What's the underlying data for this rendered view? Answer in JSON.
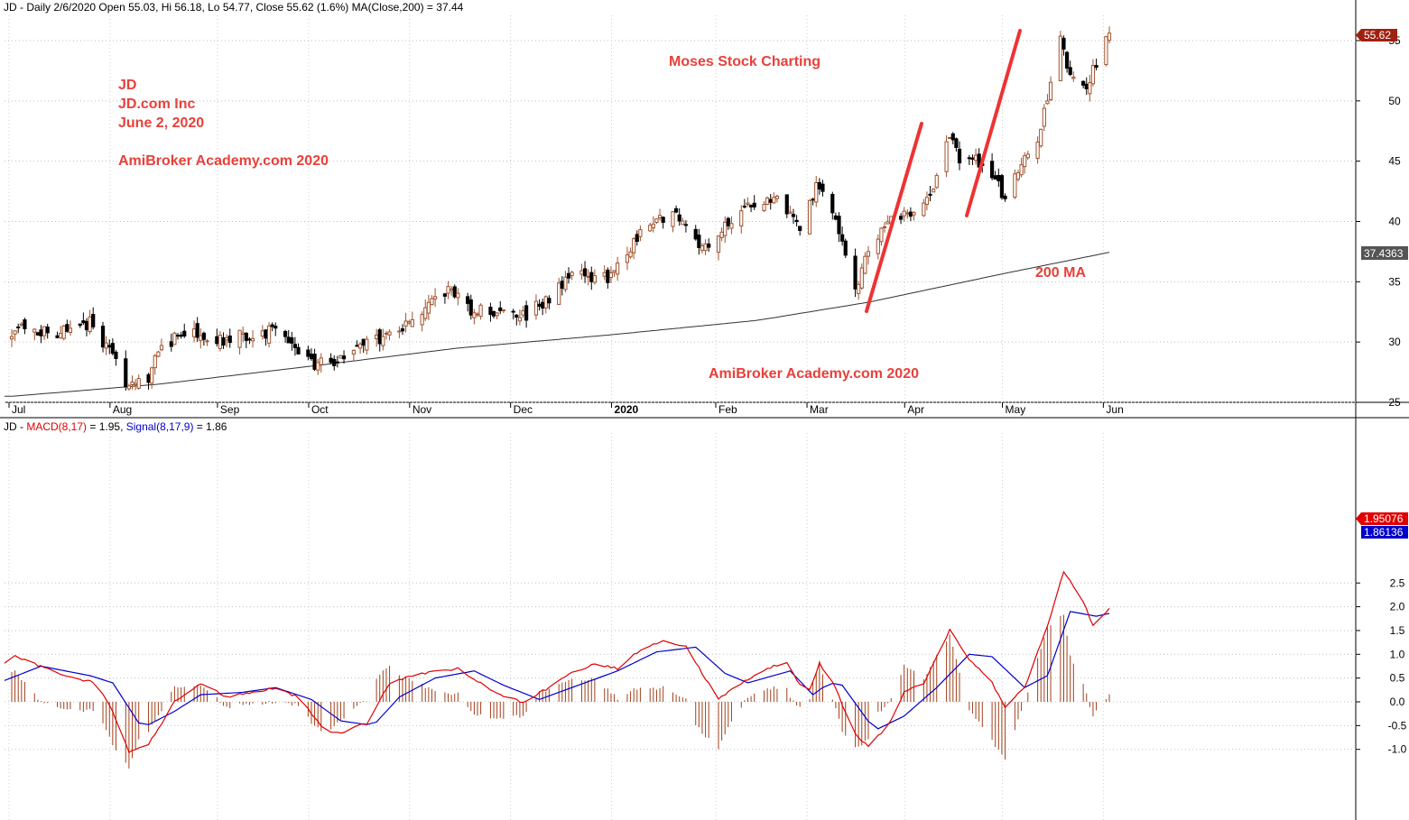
{
  "price_panel": {
    "header": "JD - Daily 2/6/2020 Open 55.03, Hi 56.18, Lo 54.77, Close 55.62 (1.6%) MA(Close,200) = 37.44",
    "last_price_label": "55.62",
    "ma_label": "37.4363",
    "annotations": {
      "ticker": "JD",
      "company": "JD.com Inc",
      "date": "June 2, 2020",
      "watermark_top": "AmiBroker Academy.com 2020",
      "title": "Moses Stock Charting",
      "ma_note": "200 MA",
      "watermark_bottom": "AmiBroker Academy.com  2020"
    }
  },
  "macd_panel": {
    "header_prefix": "JD - ",
    "header_macd": "MACD(8,17)",
    "header_macd_value": " = 1.95, ",
    "header_signal": "Signal(8,17,9)",
    "header_signal_value": " = 1.86",
    "macd_label": "1.95076",
    "signal_label": "1.86136"
  },
  "colors": {
    "up_candle": "#a0522d",
    "down_candle": "#000000",
    "macd_line": "#e00000",
    "signal_line": "#0000cc",
    "histogram": "#a0401a",
    "annotation": "#e8403a",
    "trend_line": "#ee3333",
    "ma_line": "#333333"
  },
  "chart_data": [
    {
      "type": "candlestick",
      "name": "JD price",
      "y_ticks": [
        25,
        30,
        35,
        40,
        45,
        50,
        55
      ],
      "ylim": [
        24.5,
        58
      ],
      "x_ticks": [
        "Jul",
        "Aug",
        "Sep",
        "Oct",
        "Nov",
        "Dec",
        "2020",
        "Feb",
        "Mar",
        "Apr",
        "May",
        "Jun"
      ],
      "close_anchors": [
        [
          "2019-07-01",
          31.0
        ],
        [
          "2019-07-15",
          30.8
        ],
        [
          "2019-07-25",
          31.6
        ],
        [
          "2019-08-01",
          29.0
        ],
        [
          "2019-08-05",
          26.2
        ],
        [
          "2019-08-12",
          27.0
        ],
        [
          "2019-08-15",
          29.0
        ],
        [
          "2019-08-22",
          31.0
        ],
        [
          "2019-09-01",
          30.0
        ],
        [
          "2019-09-10",
          30.5
        ],
        [
          "2019-09-20",
          30.9
        ],
        [
          "2019-09-27",
          29.0
        ],
        [
          "2019-10-01",
          28.2
        ],
        [
          "2019-10-08",
          28.4
        ],
        [
          "2019-10-15",
          29.8
        ],
        [
          "2019-10-25",
          30.6
        ],
        [
          "2019-11-01",
          31.6
        ],
        [
          "2019-11-08",
          33.3
        ],
        [
          "2019-11-13",
          34.5
        ],
        [
          "2019-11-20",
          32.5
        ],
        [
          "2019-11-29",
          32.6
        ],
        [
          "2019-12-05",
          32.2
        ],
        [
          "2019-12-13",
          33.5
        ],
        [
          "2019-12-20",
          35.8
        ],
        [
          "2019-12-31",
          35.2
        ],
        [
          "2020-01-06",
          37.0
        ],
        [
          "2020-01-10",
          39.5
        ],
        [
          "2020-01-17",
          40.1
        ],
        [
          "2020-01-23",
          40.5
        ],
        [
          "2020-01-28",
          37.4
        ],
        [
          "2020-02-03",
          39.2
        ],
        [
          "2020-02-10",
          40.9
        ],
        [
          "2020-02-17",
          41.4
        ],
        [
          "2020-02-21",
          42.1
        ],
        [
          "2020-02-25",
          40.5
        ],
        [
          "2020-02-28",
          39.0
        ],
        [
          "2020-03-04",
          43.0
        ],
        [
          "2020-03-09",
          41.0
        ],
        [
          "2020-03-12",
          38.0
        ],
        [
          "2020-03-16",
          34.5
        ],
        [
          "2020-03-19",
          36.8
        ],
        [
          "2020-03-23",
          38.7
        ],
        [
          "2020-03-26",
          40.4
        ],
        [
          "2020-03-31",
          40.6
        ],
        [
          "2020-04-06",
          41.2
        ],
        [
          "2020-04-09",
          43.0
        ],
        [
          "2020-04-14",
          47.0
        ],
        [
          "2020-04-17",
          45.0
        ],
        [
          "2020-04-22",
          45.3
        ],
        [
          "2020-04-27",
          44.0
        ],
        [
          "2020-05-01",
          42.0
        ],
        [
          "2020-05-06",
          44.5
        ],
        [
          "2020-05-11",
          47.0
        ],
        [
          "2020-05-14",
          50.5
        ],
        [
          "2020-05-18",
          55.0
        ],
        [
          "2020-05-21",
          52.0
        ],
        [
          "2020-05-26",
          51.5
        ],
        [
          "2020-05-29",
          53.0
        ],
        [
          "2020-06-02",
          55.62
        ]
      ],
      "last_candle": {
        "open": 55.03,
        "high": 56.18,
        "low": 54.77,
        "close": 55.62,
        "change_pct": 1.6
      }
    },
    {
      "type": "line",
      "name": "MA(Close,200)",
      "last_value": 37.44,
      "anchors": [
        [
          "2019-07-01",
          25.5
        ],
        [
          "2019-08-15",
          26.5
        ],
        [
          "2019-10-01",
          28.0
        ],
        [
          "2019-11-15",
          29.5
        ],
        [
          "2020-01-01",
          30.6
        ],
        [
          "2020-02-15",
          31.8
        ],
        [
          "2020-03-20",
          33.3
        ],
        [
          "2020-05-01",
          35.7
        ],
        [
          "2020-06-02",
          37.44
        ]
      ]
    },
    {
      "type": "line",
      "name": "MACD(8,17) / Signal(8,17,9)",
      "y_ticks": [
        -1.0,
        -0.5,
        0.0,
        0.5,
        1.0,
        1.5,
        2.0,
        2.5
      ],
      "ylim": [
        -1.2,
        2.95
      ],
      "x_ticks": [
        "Jul",
        "Aug",
        "Sep",
        "Oct",
        "Nov",
        "Dec",
        "2020",
        "Feb",
        "Mar",
        "Apr",
        "May",
        "Jun"
      ],
      "macd_anchors": [
        [
          "2019-06-27",
          0.7
        ],
        [
          "2019-07-02",
          0.95
        ],
        [
          "2019-07-10",
          0.75
        ],
        [
          "2019-07-20",
          0.5
        ],
        [
          "2019-07-27",
          0.4
        ],
        [
          "2019-08-01",
          -0.2
        ],
        [
          "2019-08-06",
          -1.05
        ],
        [
          "2019-08-12",
          -0.9
        ],
        [
          "2019-08-20",
          0.0
        ],
        [
          "2019-08-28",
          0.4
        ],
        [
          "2019-09-05",
          0.1
        ],
        [
          "2019-09-13",
          0.2
        ],
        [
          "2019-09-20",
          0.3
        ],
        [
          "2019-09-27",
          0.1
        ],
        [
          "2019-10-05",
          -0.6
        ],
        [
          "2019-10-10",
          -0.65
        ],
        [
          "2019-10-18",
          -0.45
        ],
        [
          "2019-10-25",
          0.4
        ],
        [
          "2019-11-01",
          0.55
        ],
        [
          "2019-11-08",
          0.65
        ],
        [
          "2019-11-15",
          0.7
        ],
        [
          "2019-11-22",
          0.4
        ],
        [
          "2019-11-29",
          0.1
        ],
        [
          "2019-12-05",
          0.0
        ],
        [
          "2019-12-13",
          0.3
        ],
        [
          "2019-12-20",
          0.6
        ],
        [
          "2019-12-27",
          0.8
        ],
        [
          "2020-01-03",
          0.7
        ],
        [
          "2020-01-10",
          1.1
        ],
        [
          "2020-01-17",
          1.3
        ],
        [
          "2020-01-24",
          1.15
        ],
        [
          "2020-02-03",
          0.05
        ],
        [
          "2020-02-10",
          0.4
        ],
        [
          "2020-02-18",
          0.7
        ],
        [
          "2020-02-24",
          0.85
        ],
        [
          "2020-03-01",
          0.1
        ],
        [
          "2020-03-05",
          0.8
        ],
        [
          "2020-03-10",
          0.3
        ],
        [
          "2020-03-15",
          -0.6
        ],
        [
          "2020-03-20",
          -0.95
        ],
        [
          "2020-03-26",
          -0.5
        ],
        [
          "2020-03-31",
          0.2
        ],
        [
          "2020-04-06",
          0.4
        ],
        [
          "2020-04-14",
          1.5
        ],
        [
          "2020-04-20",
          0.9
        ],
        [
          "2020-04-27",
          0.4
        ],
        [
          "2020-05-01",
          -0.1
        ],
        [
          "2020-05-07",
          0.3
        ],
        [
          "2020-05-14",
          1.6
        ],
        [
          "2020-05-19",
          2.75
        ],
        [
          "2020-05-25",
          2.1
        ],
        [
          "2020-05-28",
          1.6
        ],
        [
          "2020-06-02",
          1.95
        ]
      ],
      "signal_anchors": [
        [
          "2019-06-27",
          0.4
        ],
        [
          "2019-07-10",
          0.75
        ],
        [
          "2019-07-25",
          0.55
        ],
        [
          "2019-08-01",
          0.4
        ],
        [
          "2019-08-10",
          -0.55
        ],
        [
          "2019-08-20",
          -0.2
        ],
        [
          "2019-08-28",
          0.15
        ],
        [
          "2019-09-10",
          0.2
        ],
        [
          "2019-09-20",
          0.3
        ],
        [
          "2019-10-01",
          0.05
        ],
        [
          "2019-10-10",
          -0.4
        ],
        [
          "2019-10-20",
          -0.5
        ],
        [
          "2019-10-28",
          0.1
        ],
        [
          "2019-11-08",
          0.5
        ],
        [
          "2019-11-20",
          0.65
        ],
        [
          "2019-11-29",
          0.35
        ],
        [
          "2019-12-10",
          0.05
        ],
        [
          "2019-12-20",
          0.3
        ],
        [
          "2020-01-03",
          0.65
        ],
        [
          "2020-01-15",
          1.05
        ],
        [
          "2020-01-27",
          1.15
        ],
        [
          "2020-02-05",
          0.6
        ],
        [
          "2020-02-12",
          0.4
        ],
        [
          "2020-02-25",
          0.65
        ],
        [
          "2020-03-03",
          0.15
        ],
        [
          "2020-03-08",
          0.4
        ],
        [
          "2020-03-12",
          0.35
        ],
        [
          "2020-03-22",
          -0.6
        ],
        [
          "2020-03-31",
          -0.3
        ],
        [
          "2020-04-10",
          0.3
        ],
        [
          "2020-04-20",
          1.0
        ],
        [
          "2020-04-27",
          0.95
        ],
        [
          "2020-05-07",
          0.3
        ],
        [
          "2020-05-14",
          0.55
        ],
        [
          "2020-05-21",
          1.9
        ],
        [
          "2020-05-29",
          1.8
        ],
        [
          "2020-06-02",
          1.86
        ]
      ]
    }
  ]
}
